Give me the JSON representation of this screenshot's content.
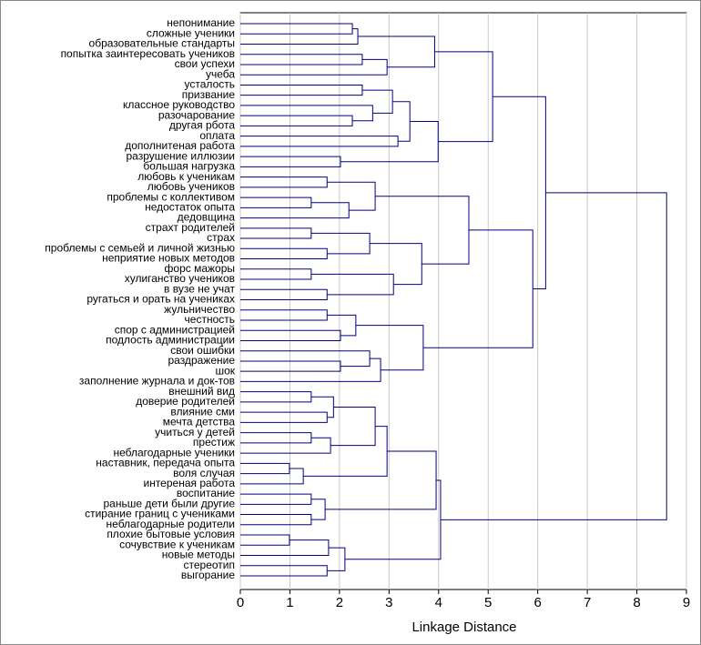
{
  "chart_data": {
    "type": "dendrogram",
    "x_label": "Linkage Distance",
    "xlim": [
      0,
      9
    ],
    "xticks": [
      0,
      1,
      2,
      3,
      4,
      5,
      6,
      7,
      8,
      9
    ],
    "grid": true,
    "color": "#000080",
    "leaves": [
      "непонимание",
      "сложные ученики",
      "образовательные стандарты",
      "попытка заинтересовать учеников",
      "свои успехи",
      "учеба",
      "усталость",
      "призвание",
      "классное руководство",
      "разочарование",
      "другая рбота",
      "оплата",
      "дополнитеная работа",
      "разрушение иллюзии",
      "большая нагрузка",
      "любовь к ученикам",
      "любовь учеников",
      "проблемы с коллективом",
      "недостаток опыта",
      "дедовщина",
      "страхт родителей",
      "страх",
      "проблемы с семьей и личной  жизнью",
      "неприятие новых методов",
      "форс мажоры",
      "хулиганство учеников",
      "в вузе не учат",
      "ругаться и орать на учениках",
      "жульничество",
      "честность",
      "спор с администрацией",
      "подлость администрации",
      "свои ошибки",
      "раздражение",
      "шок",
      "заполнение журнала и док-тов",
      "внешний вид",
      "доверие родителей",
      "влияние сми",
      "мечта детства",
      "учиться у детей",
      "престиж",
      "неблагодарные ученики",
      "наставник, передача опыта",
      "воля случая",
      "интереная работа",
      "воспитание",
      "раньше дети были другие",
      "стирание границ с учениками",
      "неблагодарные родители",
      "плохие бытовые условия",
      "сочувствие к ученикам",
      "новые методы",
      "стереотип",
      "выгорание"
    ],
    "merges": [
      [
        0,
        1,
        2.26
      ],
      [
        55,
        2,
        2.37
      ],
      [
        3,
        4,
        2.46
      ],
      [
        57,
        5,
        2.96
      ],
      [
        56,
        58,
        3.92
      ],
      [
        6,
        7,
        2.46
      ],
      [
        9,
        10,
        2.26
      ],
      [
        8,
        61,
        2.67
      ],
      [
        60,
        62,
        3.07
      ],
      [
        11,
        12,
        3.18
      ],
      [
        63,
        64,
        3.42
      ],
      [
        13,
        14,
        2.02
      ],
      [
        65,
        66,
        3.99
      ],
      [
        59,
        67,
        5.09
      ],
      [
        15,
        16,
        1.75
      ],
      [
        17,
        18,
        1.43
      ],
      [
        70,
        19,
        2.19
      ],
      [
        69,
        71,
        2.72
      ],
      [
        20,
        21,
        1.43
      ],
      [
        22,
        23,
        1.75
      ],
      [
        73,
        74,
        2.61
      ],
      [
        24,
        25,
        1.43
      ],
      [
        26,
        27,
        1.75
      ],
      [
        76,
        77,
        3.09
      ],
      [
        75,
        78,
        3.66
      ],
      [
        72,
        79,
        4.61
      ],
      [
        28,
        29,
        1.75
      ],
      [
        30,
        31,
        2.02
      ],
      [
        81,
        82,
        2.33
      ],
      [
        33,
        34,
        2.02
      ],
      [
        32,
        84,
        2.61
      ],
      [
        85,
        35,
        2.83
      ],
      [
        83,
        86,
        3.69
      ],
      [
        80,
        87,
        5.9
      ],
      [
        68,
        88,
        6.16
      ],
      [
        36,
        37,
        1.43
      ],
      [
        38,
        39,
        1.75
      ],
      [
        90,
        91,
        1.88
      ],
      [
        40,
        41,
        1.43
      ],
      [
        93,
        42,
        1.82
      ],
      [
        92,
        94,
        2.72
      ],
      [
        43,
        44,
        0.99
      ],
      [
        96,
        45,
        1.27
      ],
      [
        95,
        97,
        2.96
      ],
      [
        46,
        47,
        1.43
      ],
      [
        48,
        49,
        1.43
      ],
      [
        99,
        100,
        1.71
      ],
      [
        98,
        101,
        3.95
      ],
      [
        50,
        51,
        0.99
      ],
      [
        103,
        52,
        1.78
      ],
      [
        53,
        54,
        1.75
      ],
      [
        104,
        105,
        2.11
      ],
      [
        102,
        106,
        4.04
      ],
      [
        89,
        107,
        8.6
      ]
    ]
  }
}
